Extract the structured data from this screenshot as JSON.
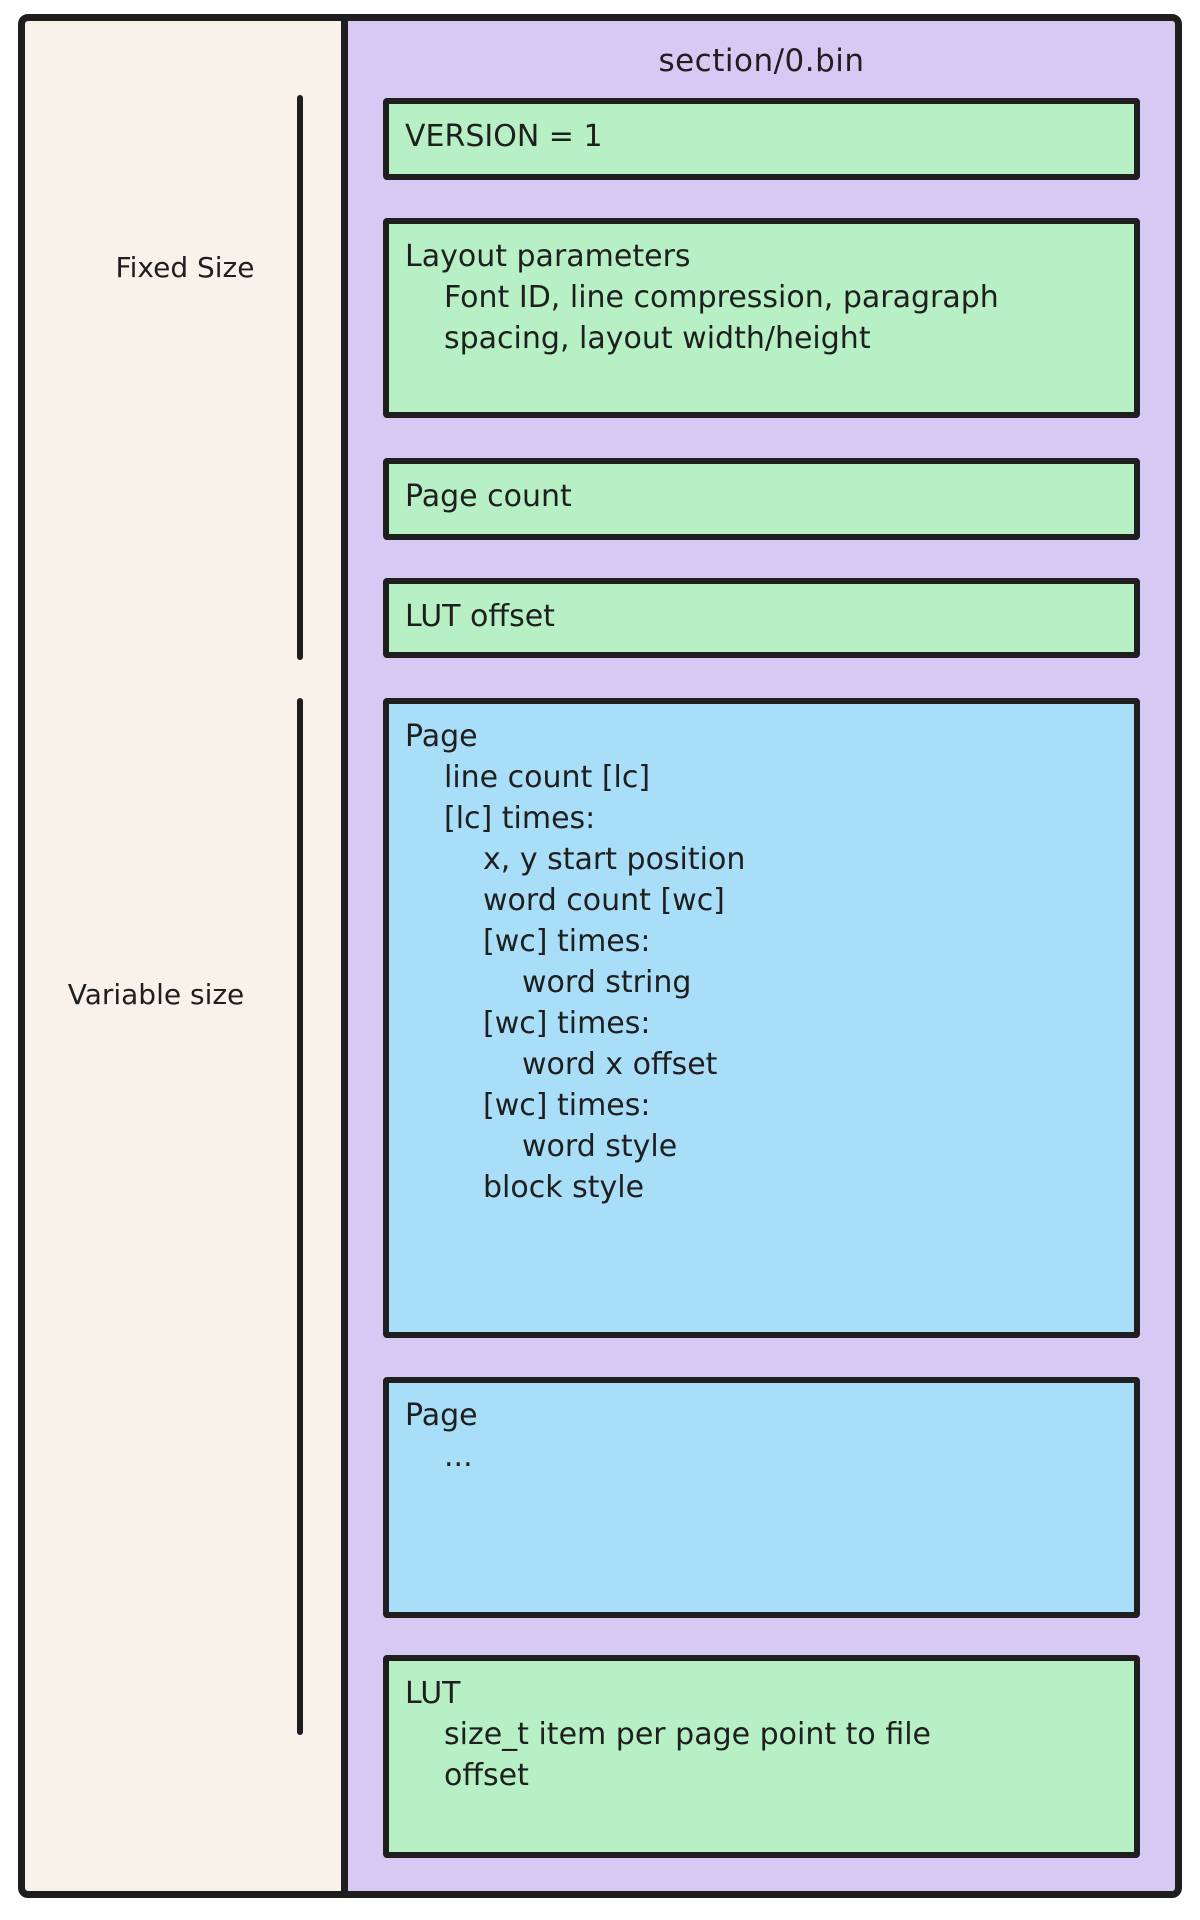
{
  "diagram": {
    "title": "section/0.bin",
    "side_labels": {
      "fixed": "Fixed Size",
      "variable": "Variable size"
    },
    "colors": {
      "canvas_cream": "#f9f2eb",
      "panel_purple": "#d6c9f4",
      "box_green": "#b7f0c4",
      "box_blue": "#a9def8",
      "stroke": "#1e1e1e"
    },
    "boxes": {
      "version": {
        "lines": [
          "VERSION = 1"
        ]
      },
      "layout_parameters": {
        "lines": [
          "Layout parameters",
          "Font ID, line compression, paragraph",
          "spacing, layout width/height"
        ]
      },
      "page_count": {
        "lines": [
          "Page count"
        ]
      },
      "lut_offset": {
        "lines": [
          "LUT offset"
        ]
      },
      "page_detail": {
        "lines": [
          "Page",
          "line count [lc]",
          "[lc] times:",
          "x, y start position",
          "word count [wc]",
          "[wc] times:",
          "word string",
          "[wc] times:",
          "word x offset",
          "[wc] times:",
          "word style",
          "block style"
        ]
      },
      "page_ellipsis": {
        "lines": [
          "Page",
          "..."
        ]
      },
      "lut": {
        "lines": [
          "LUT",
          "size_t item per page point to file",
          "offset"
        ]
      }
    }
  }
}
